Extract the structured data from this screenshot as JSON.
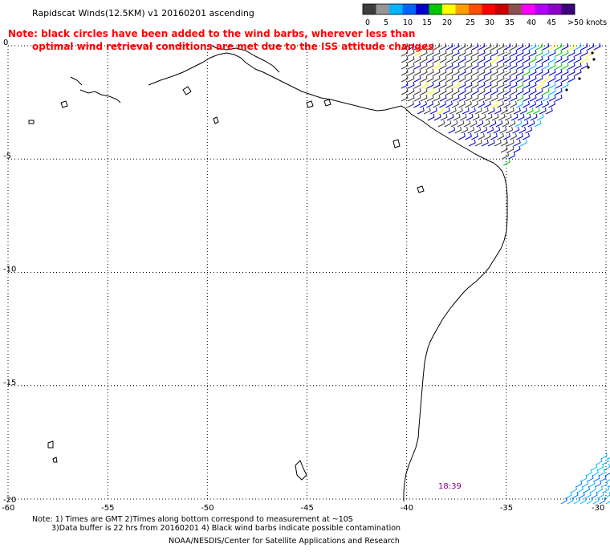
{
  "header": {
    "title": "Rapidscat Winds(12.5KM) v1 20160201 ascending",
    "note_line1": "Note: black circles have been added to the wind barbs, wherever less than",
    "note_line2": "optimal wind retrieval conditions are met due to the ISS attitude changes"
  },
  "legend": {
    "labels": [
      "0",
      "5",
      "10",
      "15",
      "20",
      "25",
      "30",
      "35",
      "40",
      "45",
      ">50 knots"
    ],
    "colors": [
      "#3c3c3c",
      "#969696",
      "#00b4ff",
      "#0064ff",
      "#0000c8",
      "#00c800",
      "#ffff00",
      "#ffa000",
      "#ff5000",
      "#ff0000",
      "#c80000",
      "#8c5050",
      "#ff00ff",
      "#b400ff",
      "#8c00c8",
      "#3c0078"
    ]
  },
  "axes": {
    "lon_labels": [
      "-60",
      "-55",
      "-50",
      "-45",
      "-40",
      "-35",
      "-30"
    ],
    "lat_labels": [
      "0",
      "-5",
      "-10",
      "-15",
      "-20"
    ]
  },
  "map": {
    "lon_range": [
      -60,
      -30
    ],
    "lat_range": [
      -20,
      0
    ],
    "time_label": "18:39",
    "coast_color": "#000000",
    "barb_colors": {
      "calm": "#3c3c3c",
      "light": "#00b4ff",
      "moderate": "#0064ff",
      "strong": "#0000c8",
      "fresh": "#00c800",
      "gale": "#ffff00"
    }
  },
  "footer": {
    "line1": "Note: 1) Times are GMT 2)Times along bottom correspond to measurement at ~10S",
    "line2": "3)Data buffer is 22 hrs from 20160201 4) Black wind barbs indicate possible contamination",
    "line3": "NOAA/NESDIS/Center for Satellite Applications and Research"
  }
}
